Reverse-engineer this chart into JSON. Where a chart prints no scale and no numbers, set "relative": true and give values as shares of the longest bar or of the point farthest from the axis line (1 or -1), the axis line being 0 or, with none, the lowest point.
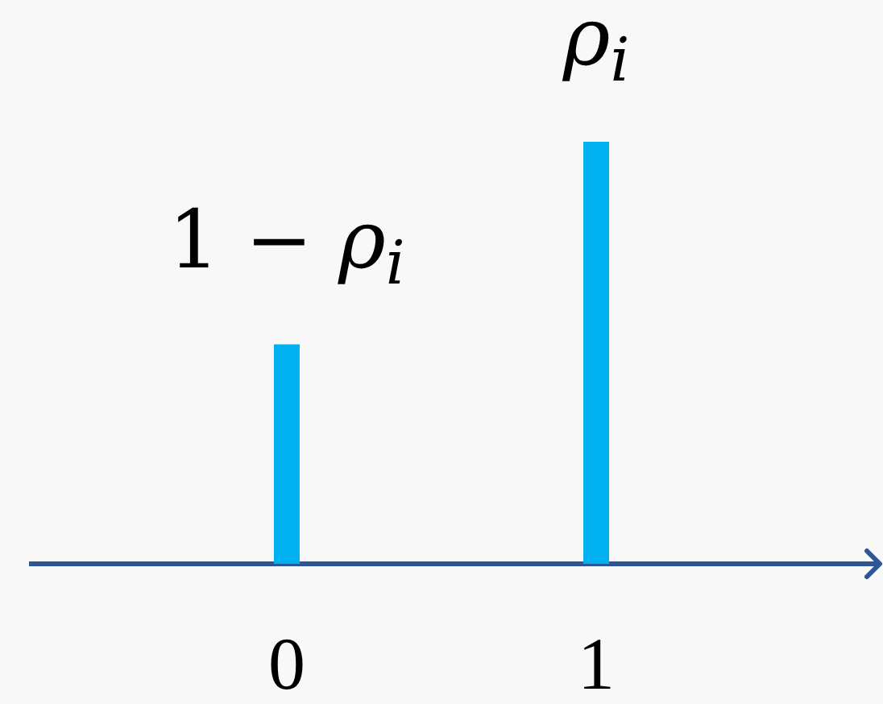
{
  "chart_data": {
    "type": "bar",
    "relative": true,
    "categories": [
      "0",
      "1"
    ],
    "values": [
      0.52,
      1
    ],
    "color": "#00b0f0",
    "annotations": [
      {
        "text": "1 − ρ$_{i}$",
        "x": "0",
        "y": 0.52
      },
      {
        "text": "ρ$_{i}$",
        "x": "1",
        "y": 1
      }
    ]
  }
}
